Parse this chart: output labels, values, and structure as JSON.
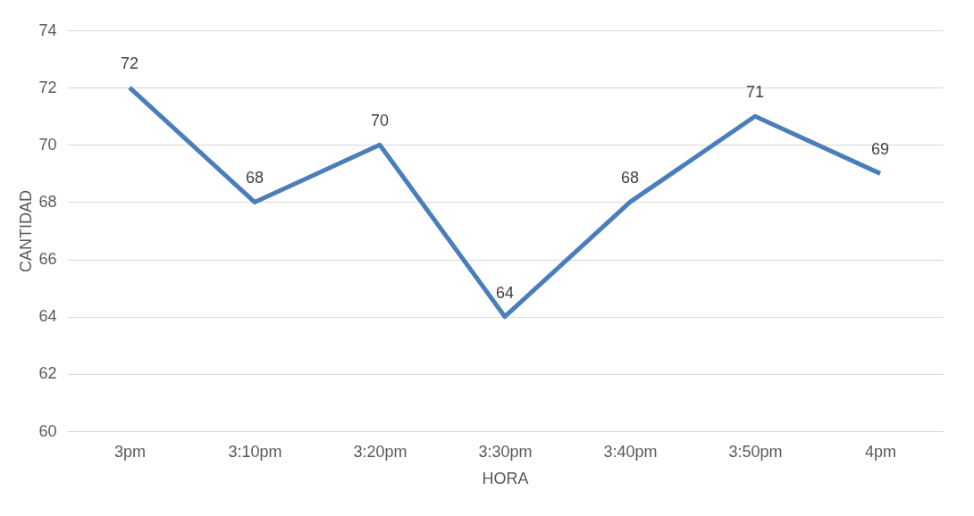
{
  "chart_data": {
    "type": "line",
    "xlabel": "HORA",
    "ylabel": "CANTIDAD",
    "categories": [
      "3pm",
      "3:10pm",
      "3:20pm",
      "3:30pm",
      "3:40pm",
      "3:50pm",
      "4pm"
    ],
    "series": [
      {
        "color": "#4a7ebb",
        "values": [
          72,
          68,
          70,
          64,
          68,
          71,
          69
        ]
      }
    ],
    "ylim": [
      60,
      74
    ],
    "yticks": [
      60,
      62,
      64,
      66,
      68,
      70,
      72,
      74
    ],
    "grid": "y",
    "data_labels": true,
    "marker": "none",
    "line_style": "solid",
    "legend": false
  }
}
